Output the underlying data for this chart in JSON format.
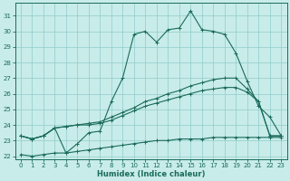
{
  "xlabel": "Humidex (Indice chaleur)",
  "xlim": [
    -0.5,
    23.5
  ],
  "ylim": [
    21.8,
    31.8
  ],
  "yticks": [
    22,
    23,
    24,
    25,
    26,
    27,
    28,
    29,
    30,
    31
  ],
  "xticks": [
    0,
    1,
    2,
    3,
    4,
    5,
    6,
    7,
    8,
    9,
    10,
    11,
    12,
    13,
    14,
    15,
    16,
    17,
    18,
    19,
    20,
    21,
    22,
    23
  ],
  "bg_color": "#c8ece9",
  "grid_color": "#8fccca",
  "line_color": "#1a6b5a",
  "line1_x": [
    0,
    1,
    2,
    3,
    4,
    5,
    6,
    7,
    8,
    9,
    10,
    11,
    12,
    13,
    14,
    15,
    16,
    17,
    18,
    19,
    20,
    21,
    22,
    23
  ],
  "line1_y": [
    23.3,
    23.1,
    23.3,
    23.8,
    22.2,
    22.8,
    23.5,
    23.6,
    25.5,
    27.0,
    29.8,
    30.0,
    29.3,
    30.1,
    30.2,
    31.3,
    30.1,
    30.0,
    29.8,
    28.6,
    26.8,
    25.2,
    24.5,
    23.3
  ],
  "line2_x": [
    0,
    1,
    2,
    3,
    4,
    5,
    6,
    7,
    8,
    9,
    10,
    11,
    12,
    13,
    14,
    15,
    16,
    17,
    18,
    19,
    20,
    21,
    22,
    23
  ],
  "line2_y": [
    23.3,
    23.1,
    23.3,
    23.8,
    23.9,
    24.0,
    24.1,
    24.2,
    24.5,
    24.8,
    25.1,
    25.5,
    25.7,
    26.0,
    26.2,
    26.5,
    26.7,
    26.9,
    27.0,
    27.0,
    26.3,
    25.5,
    23.3,
    23.3
  ],
  "line3_x": [
    0,
    1,
    2,
    3,
    4,
    5,
    6,
    7,
    8,
    9,
    10,
    11,
    12,
    13,
    14,
    15,
    16,
    17,
    18,
    19,
    20,
    21,
    22,
    23
  ],
  "line3_y": [
    23.3,
    23.1,
    23.3,
    23.8,
    23.9,
    24.0,
    24.0,
    24.1,
    24.3,
    24.6,
    24.9,
    25.2,
    25.4,
    25.6,
    25.8,
    26.0,
    26.2,
    26.3,
    26.4,
    26.4,
    26.1,
    25.5,
    23.3,
    23.3
  ],
  "line4_x": [
    0,
    1,
    2,
    3,
    4,
    5,
    6,
    7,
    8,
    9,
    10,
    11,
    12,
    13,
    14,
    15,
    16,
    17,
    18,
    19,
    20,
    21,
    22,
    23
  ],
  "line4_y": [
    22.1,
    22.0,
    22.1,
    22.2,
    22.2,
    22.3,
    22.4,
    22.5,
    22.6,
    22.7,
    22.8,
    22.9,
    23.0,
    23.0,
    23.1,
    23.1,
    23.1,
    23.2,
    23.2,
    23.2,
    23.2,
    23.2,
    23.2,
    23.2
  ]
}
